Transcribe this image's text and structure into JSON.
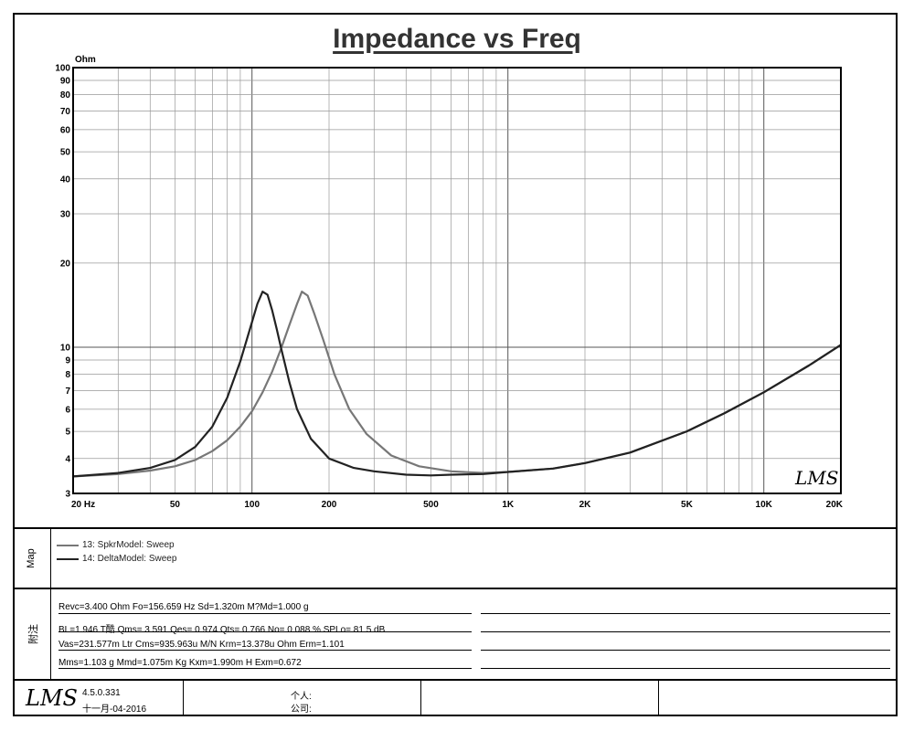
{
  "chart_data": {
    "type": "line",
    "title": "Impedance vs Freq",
    "ylabel": "Ohm",
    "xlabel": "",
    "x_scale": "log",
    "y_scale": "log",
    "xlim": [
      20,
      20000
    ],
    "ylim": [
      3,
      100
    ],
    "x_tick_labels": [
      {
        "value": 20,
        "label": "20  Hz"
      },
      {
        "value": 50,
        "label": "50"
      },
      {
        "value": 100,
        "label": "100"
      },
      {
        "value": 200,
        "label": "200"
      },
      {
        "value": 500,
        "label": "500"
      },
      {
        "value": 1000,
        "label": "1K"
      },
      {
        "value": 2000,
        "label": "2K"
      },
      {
        "value": 5000,
        "label": "5K"
      },
      {
        "value": 10000,
        "label": "10K"
      },
      {
        "value": 20000,
        "label": "20K"
      }
    ],
    "y_tick_labels": [
      {
        "value": 3,
        "label": "3"
      },
      {
        "value": 4,
        "label": "4"
      },
      {
        "value": 5,
        "label": "5"
      },
      {
        "value": 6,
        "label": "6"
      },
      {
        "value": 7,
        "label": "7"
      },
      {
        "value": 8,
        "label": "8"
      },
      {
        "value": 9,
        "label": "9"
      },
      {
        "value": 10,
        "label": "10"
      },
      {
        "value": 20,
        "label": "20"
      },
      {
        "value": 30,
        "label": "30"
      },
      {
        "value": 40,
        "label": "40"
      },
      {
        "value": 50,
        "label": "50"
      },
      {
        "value": 60,
        "label": "60"
      },
      {
        "value": 70,
        "label": "70"
      },
      {
        "value": 80,
        "label": "80"
      },
      {
        "value": 90,
        "label": "90"
      },
      {
        "value": 100,
        "label": "100"
      }
    ],
    "grid": true,
    "series": [
      {
        "name": "13: SpkrModel: Sweep",
        "color": "#777777",
        "x": [
          20,
          30,
          40,
          50,
          60,
          70,
          80,
          90,
          100,
          110,
          120,
          130,
          140,
          150,
          156.659,
          165,
          175,
          190,
          210,
          240,
          280,
          350,
          450,
          600,
          800,
          1000,
          1500,
          2000,
          3000,
          5000,
          7000,
          10000,
          15000,
          20000
        ],
        "y": [
          3.45,
          3.52,
          3.62,
          3.75,
          3.95,
          4.25,
          4.65,
          5.2,
          5.9,
          6.9,
          8.2,
          9.9,
          12.0,
          14.3,
          15.8,
          15.3,
          13.2,
          10.6,
          8.0,
          6.0,
          4.9,
          4.1,
          3.75,
          3.6,
          3.55,
          3.58,
          3.68,
          3.85,
          4.2,
          5.0,
          5.8,
          6.9,
          8.6,
          10.2
        ]
      },
      {
        "name": "14: DeltaModel: Sweep",
        "color": "#222222",
        "x": [
          20,
          30,
          40,
          50,
          60,
          70,
          80,
          90,
          100,
          105,
          110,
          115,
          120,
          125,
          130,
          140,
          150,
          170,
          200,
          250,
          300,
          400,
          500,
          600,
          800,
          1000,
          1500,
          2000,
          3000,
          5000,
          7000,
          10000,
          15000,
          20000
        ],
        "y": [
          3.45,
          3.55,
          3.7,
          3.95,
          4.4,
          5.2,
          6.6,
          8.9,
          12.3,
          14.3,
          15.8,
          15.4,
          13.5,
          11.6,
          9.9,
          7.5,
          6.0,
          4.7,
          4.0,
          3.7,
          3.6,
          3.5,
          3.48,
          3.5,
          3.52,
          3.58,
          3.68,
          3.85,
          4.2,
          5.0,
          5.8,
          6.9,
          8.6,
          10.2
        ]
      }
    ],
    "watermark": "LMS"
  },
  "map_label": "Map",
  "legend": [
    {
      "text": "13: SpkrModel: Sweep",
      "color": "#777777"
    },
    {
      "text": "14: DeltaModel: Sweep",
      "color": "#222222"
    }
  ],
  "notes_label": "附注",
  "params": [
    "Revc=3.400 Ohm  Fo=156.659 Hz  Sd=1.320m M?Md=1.000 g",
    "BL=1.946 T酷  Qms= 3.591  Qes= 0.974  Qts= 0.766  No= 0.088 %  SPLo= 81.5 dB",
    "Vas=231.577m Ltr  Cms=935.963u M/N  Krm=13.378u Ohm  Erm=1.101",
    "Mms=1.103 g  Mmd=1.075m Kg  Kxm=1.990m H  Exm=0.672"
  ],
  "footer": {
    "logo": "LMS",
    "version": "4.5.0.331",
    "date": "十一月-04-2016",
    "person_label": "个人:",
    "company_label": "公司:"
  }
}
